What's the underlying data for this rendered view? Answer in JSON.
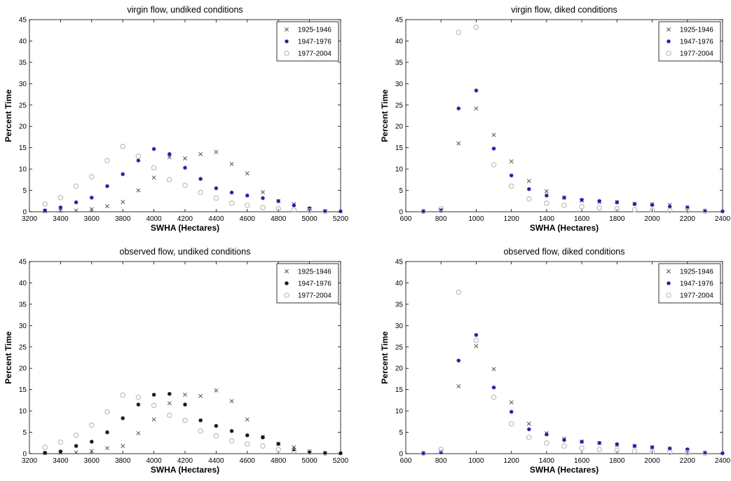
{
  "chart_data": [
    {
      "type": "scatter",
      "title": "virgin flow, undiked conditions",
      "xlabel": "SWHA (Hectares)",
      "ylabel": "Percent Time",
      "xlim": [
        3200,
        5200
      ],
      "ylim": [
        0,
        45
      ],
      "xticks": [
        3200,
        3400,
        3600,
        3800,
        4000,
        4200,
        4400,
        4600,
        4800,
        5000,
        5200
      ],
      "yticks": [
        0,
        5,
        10,
        15,
        20,
        25,
        30,
        35,
        40,
        45
      ],
      "legend_position": "top-right",
      "series": [
        {
          "name": "1925-1946",
          "color": "#555555",
          "marker": "x",
          "x": [
            3300,
            3400,
            3500,
            3600,
            3700,
            3800,
            3900,
            4000,
            4100,
            4200,
            4300,
            4400,
            4500,
            4600,
            4700,
            4800,
            4900,
            5000,
            5100
          ],
          "y": [
            0.1,
            0.2,
            0.3,
            0.6,
            1.3,
            2.3,
            5.0,
            8.0,
            12.8,
            12.5,
            13.5,
            14.0,
            11.2,
            9.0,
            4.6,
            2.5,
            1.8,
            0.7,
            0.2
          ]
        },
        {
          "name": "1947-1976",
          "color": "#1f1fa8",
          "marker": "star",
          "x": [
            3300,
            3400,
            3500,
            3600,
            3700,
            3800,
            3900,
            4000,
            4100,
            4200,
            4300,
            4400,
            4500,
            4600,
            4700,
            4800,
            4900,
            5000,
            5100,
            5200
          ],
          "y": [
            0.3,
            1.0,
            2.2,
            3.3,
            6.0,
            8.8,
            12.0,
            14.7,
            13.5,
            10.3,
            7.7,
            5.5,
            4.5,
            3.8,
            3.2,
            2.5,
            1.5,
            0.8,
            0.2,
            0.1
          ]
        },
        {
          "name": "1977-2004",
          "color": "#bdbdbd",
          "marker": "o",
          "x": [
            3300,
            3400,
            3500,
            3600,
            3700,
            3800,
            3900,
            4000,
            4100,
            4200,
            4300,
            4400,
            4500,
            4600,
            4700,
            4800,
            4900,
            5000,
            5100
          ],
          "y": [
            1.8,
            3.3,
            6.0,
            8.2,
            12.0,
            15.3,
            13.0,
            10.3,
            7.5,
            6.2,
            4.5,
            3.2,
            2.0,
            1.5,
            1.0,
            0.7,
            0.4,
            0.2,
            0.1
          ]
        }
      ]
    },
    {
      "type": "scatter",
      "title": "virgin flow, diked conditions",
      "xlabel": "SWHA (Hectares)",
      "ylabel": "Percent Time",
      "xlim": [
        600,
        2400
      ],
      "ylim": [
        0,
        45
      ],
      "xticks": [
        600,
        800,
        1000,
        1200,
        1400,
        1600,
        1800,
        2000,
        2200,
        2400
      ],
      "yticks": [
        0,
        5,
        10,
        15,
        20,
        25,
        30,
        35,
        40,
        45
      ],
      "legend_position": "top-right",
      "series": [
        {
          "name": "1925-1946",
          "color": "#555555",
          "marker": "x",
          "x": [
            700,
            800,
            900,
            1000,
            1100,
            1200,
            1300,
            1400,
            1500,
            1600,
            1700,
            1800,
            1900,
            2000,
            2100,
            2200,
            2300
          ],
          "y": [
            0.1,
            0.4,
            16.0,
            24.2,
            18.0,
            11.8,
            7.2,
            4.8,
            3.3,
            2.6,
            2.3,
            2.3,
            1.9,
            1.8,
            1.6,
            1.0,
            0.2
          ]
        },
        {
          "name": "1947-1976",
          "color": "#1f1fa8",
          "marker": "star",
          "x": [
            700,
            800,
            900,
            1000,
            1100,
            1200,
            1300,
            1400,
            1500,
            1600,
            1700,
            1800,
            1900,
            2000,
            2100,
            2200,
            2300,
            2400
          ],
          "y": [
            0.1,
            0.3,
            24.2,
            28.4,
            14.8,
            8.5,
            5.3,
            3.8,
            3.3,
            2.8,
            2.5,
            2.2,
            1.8,
            1.6,
            1.2,
            1.0,
            0.3,
            0.1
          ]
        },
        {
          "name": "1977-2004",
          "color": "#bdbdbd",
          "marker": "o",
          "x": [
            700,
            800,
            900,
            1000,
            1100,
            1200,
            1300,
            1400,
            1500,
            1600,
            1700,
            1800,
            1900,
            2000,
            2100,
            2200,
            2300
          ],
          "y": [
            0.1,
            0.7,
            42.0,
            43.2,
            11.0,
            6.0,
            3.0,
            2.0,
            1.5,
            1.2,
            0.9,
            0.7,
            0.5,
            0.4,
            0.3,
            0.2,
            0.1
          ]
        }
      ]
    },
    {
      "type": "scatter",
      "title": "observed flow, undiked conditions",
      "xlabel": "SWHA (Hectares)",
      "ylabel": "Percent Time",
      "xlim": [
        3200,
        5200
      ],
      "ylim": [
        0,
        45
      ],
      "xticks": [
        3200,
        3400,
        3600,
        3800,
        4000,
        4200,
        4400,
        4600,
        4800,
        5000,
        5200
      ],
      "yticks": [
        0,
        5,
        10,
        15,
        20,
        25,
        30,
        35,
        40,
        45
      ],
      "legend_position": "top-right",
      "series": [
        {
          "name": "1925-1946",
          "color": "#555555",
          "marker": "x",
          "x": [
            3300,
            3400,
            3500,
            3600,
            3700,
            3800,
            3900,
            4000,
            4100,
            4200,
            4300,
            4400,
            4500,
            4600,
            4700,
            4800,
            4900,
            5000,
            5100
          ],
          "y": [
            0.1,
            0.2,
            0.3,
            0.6,
            1.3,
            1.8,
            4.8,
            8.0,
            11.8,
            13.8,
            13.5,
            14.8,
            12.3,
            8.0,
            4.0,
            2.3,
            1.5,
            0.5,
            0.2
          ]
        },
        {
          "name": "1947-1976",
          "color": "#111111",
          "marker": "star",
          "x": [
            3300,
            3400,
            3500,
            3600,
            3700,
            3800,
            3900,
            4000,
            4100,
            4200,
            4300,
            4400,
            4500,
            4600,
            4700,
            4800,
            4900,
            5000,
            5100,
            5200
          ],
          "y": [
            0.2,
            0.5,
            1.8,
            2.8,
            5.0,
            8.3,
            11.5,
            13.8,
            14.0,
            11.5,
            7.8,
            6.5,
            5.3,
            4.3,
            3.8,
            2.3,
            1.0,
            0.5,
            0.2,
            0.1
          ]
        },
        {
          "name": "1977-2004",
          "color": "#bdbdbd",
          "marker": "o",
          "x": [
            3300,
            3400,
            3500,
            3600,
            3700,
            3800,
            3900,
            4000,
            4100,
            4200,
            4300,
            4400,
            4500,
            4600,
            4700,
            4800,
            4900,
            5000,
            5100
          ],
          "y": [
            1.5,
            2.7,
            4.3,
            6.7,
            9.8,
            13.7,
            13.2,
            11.3,
            9.0,
            7.8,
            5.3,
            4.2,
            3.0,
            2.3,
            1.8,
            1.0,
            0.6,
            0.3,
            0.1
          ]
        }
      ]
    },
    {
      "type": "scatter",
      "title": "observed flow, diked conditions",
      "xlabel": "SWHA (Hectares)",
      "ylabel": "Percent Time",
      "xlim": [
        600,
        2400
      ],
      "ylim": [
        0,
        45
      ],
      "xticks": [
        600,
        800,
        1000,
        1200,
        1400,
        1600,
        1800,
        2000,
        2200,
        2400
      ],
      "yticks": [
        0,
        5,
        10,
        15,
        20,
        25,
        30,
        35,
        40,
        45
      ],
      "legend_position": "top-right",
      "series": [
        {
          "name": "1925-1946",
          "color": "#555555",
          "marker": "x",
          "x": [
            700,
            800,
            900,
            1000,
            1100,
            1200,
            1300,
            1400,
            1500,
            1600,
            1700,
            1800,
            1900,
            2000,
            2100,
            2200,
            2300
          ],
          "y": [
            0.1,
            0.4,
            15.8,
            25.2,
            19.8,
            12.0,
            7.0,
            4.8,
            3.5,
            2.8,
            2.5,
            2.0,
            1.8,
            1.5,
            1.2,
            0.8,
            0.2
          ]
        },
        {
          "name": "1947-1976",
          "color": "#1f1fa8",
          "marker": "star",
          "x": [
            700,
            800,
            900,
            1000,
            1100,
            1200,
            1300,
            1400,
            1500,
            1600,
            1700,
            1800,
            1900,
            2000,
            2100,
            2200,
            2300,
            2400
          ],
          "y": [
            0.1,
            0.3,
            21.8,
            27.8,
            15.5,
            9.8,
            5.7,
            4.5,
            3.2,
            2.8,
            2.5,
            2.2,
            1.8,
            1.5,
            1.2,
            1.0,
            0.3,
            0.1
          ]
        },
        {
          "name": "1977-2004",
          "color": "#bdbdbd",
          "marker": "o",
          "x": [
            700,
            800,
            900,
            1000,
            1100,
            1200,
            1300,
            1400,
            1500,
            1600,
            1700,
            1800,
            1900,
            2000,
            2100,
            2200,
            2300
          ],
          "y": [
            0.1,
            1.0,
            37.8,
            26.5,
            13.2,
            7.0,
            3.8,
            2.5,
            1.8,
            1.3,
            1.0,
            0.8,
            0.6,
            0.4,
            0.3,
            0.2,
            0.1
          ]
        }
      ]
    }
  ]
}
